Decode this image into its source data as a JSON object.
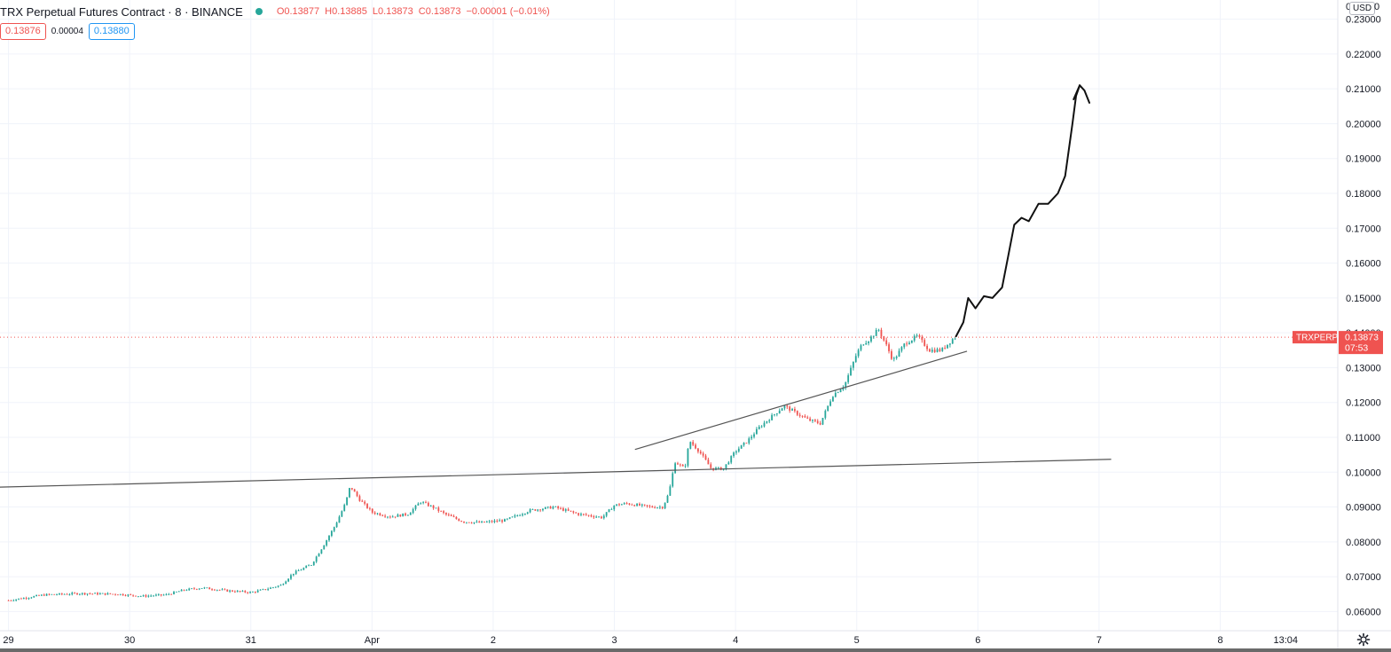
{
  "legend": {
    "title": "TRX Perpetual Futures Contract · 8 · BINANCE",
    "open_label": "O",
    "open": "0.13877",
    "high_label": "H",
    "high": "0.13885",
    "low_label": "L",
    "low": "0.13873",
    "close_label": "C",
    "close": "0.13873",
    "change": "−0.00001 (−0.01%)",
    "status_color": "#26a69a"
  },
  "quote": {
    "bid": "0.13876",
    "spread": "0.00004",
    "ask": "0.13880"
  },
  "toolbar": {
    "currency": "USD",
    "left_zero": "0",
    "right_zero": "0",
    "settings_icon": "gear-icon"
  },
  "price_label": {
    "symbol": "TRXPERP",
    "price": "0.13873",
    "countdown": "07:53",
    "color": "#ef5350"
  },
  "chart_data": {
    "type": "candlestick",
    "symbol": "TRXPERP",
    "interval": "8",
    "y_ticks": [
      "0.23000",
      "0.22000",
      "0.21000",
      "0.20000",
      "0.19000",
      "0.18000",
      "0.17000",
      "0.16000",
      "0.15000",
      "0.14000",
      "0.13000",
      "0.12000",
      "0.11000",
      "0.10000",
      "0.09000",
      "0.08000",
      "0.07000",
      "0.06000"
    ],
    "ylim": [
      0.0545,
      0.2355
    ],
    "x_ticks": [
      "29",
      "30",
      "31",
      "Apr",
      "2",
      "3",
      "4",
      "5",
      "6",
      "7",
      "8",
      "13:04"
    ],
    "x_tick_days": [
      0,
      1,
      2,
      3,
      4,
      5,
      6,
      7,
      8,
      9,
      10,
      10.54
    ],
    "xlim": [
      -0.07,
      10.97
    ],
    "price_path": [
      [
        0.0,
        0.0632
      ],
      [
        0.3,
        0.0648
      ],
      [
        0.6,
        0.0652
      ],
      [
        0.9,
        0.065
      ],
      [
        1.1,
        0.0644
      ],
      [
        1.3,
        0.0648
      ],
      [
        1.45,
        0.0662
      ],
      [
        1.6,
        0.0668
      ],
      [
        1.8,
        0.066
      ],
      [
        2.0,
        0.0655
      ],
      [
        2.1,
        0.0662
      ],
      [
        2.25,
        0.0676
      ],
      [
        2.35,
        0.071
      ],
      [
        2.5,
        0.0735
      ],
      [
        2.6,
        0.079
      ],
      [
        2.7,
        0.085
      ],
      [
        2.78,
        0.091
      ],
      [
        2.82,
        0.096
      ],
      [
        2.9,
        0.092
      ],
      [
        3.0,
        0.0885
      ],
      [
        3.15,
        0.0872
      ],
      [
        3.3,
        0.088
      ],
      [
        3.4,
        0.0915
      ],
      [
        3.5,
        0.09
      ],
      [
        3.6,
        0.088
      ],
      [
        3.75,
        0.0858
      ],
      [
        3.9,
        0.0855
      ],
      [
        4.1,
        0.0862
      ],
      [
        4.3,
        0.089
      ],
      [
        4.5,
        0.09
      ],
      [
        4.7,
        0.088
      ],
      [
        4.9,
        0.087
      ],
      [
        5.0,
        0.0905
      ],
      [
        5.1,
        0.091
      ],
      [
        5.3,
        0.09
      ],
      [
        5.4,
        0.09
      ],
      [
        5.45,
        0.094
      ],
      [
        5.5,
        0.103
      ],
      [
        5.58,
        0.101
      ],
      [
        5.62,
        0.109
      ],
      [
        5.7,
        0.106
      ],
      [
        5.8,
        0.101
      ],
      [
        5.9,
        0.101
      ],
      [
        6.0,
        0.106
      ],
      [
        6.1,
        0.109
      ],
      [
        6.2,
        0.113
      ],
      [
        6.3,
        0.116
      ],
      [
        6.4,
        0.119
      ],
      [
        6.5,
        0.117
      ],
      [
        6.6,
        0.115
      ],
      [
        6.7,
        0.114
      ],
      [
        6.8,
        0.122
      ],
      [
        6.9,
        0.125
      ],
      [
        7.0,
        0.134
      ],
      [
        7.05,
        0.137
      ],
      [
        7.1,
        0.138
      ],
      [
        7.18,
        0.141
      ],
      [
        7.25,
        0.136
      ],
      [
        7.3,
        0.132
      ],
      [
        7.4,
        0.137
      ],
      [
        7.5,
        0.139
      ],
      [
        7.6,
        0.135
      ],
      [
        7.7,
        0.135
      ],
      [
        7.8,
        0.1385
      ],
      [
        7.82,
        0.13873
      ]
    ],
    "annotations": {
      "support_line": {
        "x1": -0.07,
        "y1": 0.0957,
        "x2": 9.1,
        "y2": 0.1037,
        "color": "#555555"
      },
      "trend_line": {
        "x1": 5.17,
        "y1": 0.1065,
        "x2": 7.91,
        "y2": 0.1347,
        "color": "#555555"
      },
      "projection_path": [
        [
          7.82,
          0.139
        ],
        [
          7.88,
          0.143
        ],
        [
          7.92,
          0.15
        ],
        [
          7.98,
          0.147
        ],
        [
          8.05,
          0.1505
        ],
        [
          8.12,
          0.15
        ],
        [
          8.2,
          0.153
        ],
        [
          8.25,
          0.162
        ],
        [
          8.3,
          0.171
        ],
        [
          8.36,
          0.173
        ],
        [
          8.42,
          0.172
        ],
        [
          8.5,
          0.177
        ],
        [
          8.58,
          0.177
        ],
        [
          8.66,
          0.18
        ],
        [
          8.72,
          0.185
        ],
        [
          8.78,
          0.2
        ],
        [
          8.81,
          0.208
        ],
        [
          8.84,
          0.211
        ],
        [
          8.88,
          0.2095
        ],
        [
          8.92,
          0.206
        ]
      ],
      "projection_arrow_left": [
        [
          8.84,
          0.211
        ],
        [
          8.79,
          0.207
        ]
      ],
      "projection_color": "#111111",
      "last_price_line": 0.13873
    },
    "colors": {
      "up": "#26a69a",
      "down": "#ef5350",
      "grid": "#f0f3fa",
      "axis_text": "#131722"
    }
  }
}
